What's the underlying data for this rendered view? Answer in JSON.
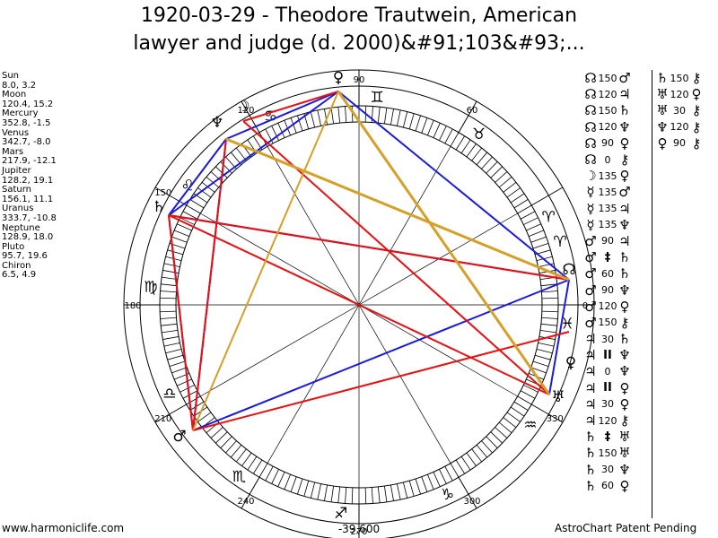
{
  "title_line1": "1920-03-29 - Theodore Trautwein, American",
  "title_line2": "lawyer and judge (d. 2000)&#91;103&#93;...",
  "planets": [
    {
      "name": "Sun",
      "coords": "8.0, 3.2"
    },
    {
      "name": "Moon",
      "coords": "120.4, 15.2"
    },
    {
      "name": "Mercury",
      "coords": "352.8, -1.5"
    },
    {
      "name": "Venus",
      "coords": "342.7, -8.0"
    },
    {
      "name": "Mars",
      "coords": "217.9, -12.1"
    },
    {
      "name": "Jupiter",
      "coords": "128.2, 19.1"
    },
    {
      "name": "Saturn",
      "coords": "156.1, 11.1"
    },
    {
      "name": "Uranus",
      "coords": "333.7, -10.8"
    },
    {
      "name": "Neptune",
      "coords": "128.9, 18.0"
    },
    {
      "name": "Pluto",
      "coords": "95.7, 19.6"
    },
    {
      "name": "Chiron",
      "coords": "6.5, 4.9"
    }
  ],
  "degree_labels": [
    "90",
    "60",
    "120",
    "150",
    "180",
    "210",
    "240",
    "270",
    "300",
    "330",
    "0"
  ],
  "center_label": "-39,600",
  "footer_left": "www.harmoniclife.com",
  "footer_right": "AstroChart Patent Pending",
  "aspects_col1": [
    [
      "☊",
      "150",
      "♂"
    ],
    [
      "☊",
      "120",
      "♃"
    ],
    [
      "☊",
      "150",
      "♄"
    ],
    [
      "☊",
      "120",
      "♆"
    ],
    [
      "☊",
      "90",
      "♀"
    ],
    [
      "☊",
      "0",
      "⚷"
    ],
    [
      "☽",
      "135",
      "♀"
    ],
    [
      "☿",
      "135",
      "♂"
    ],
    [
      "☿",
      "135",
      "♃"
    ],
    [
      "☿",
      "135",
      "♆"
    ],
    [
      "♂",
      "90",
      "♃"
    ],
    [
      "♂",
      "‡",
      "♄"
    ],
    [
      "♂",
      "60",
      "♄"
    ],
    [
      "♂",
      "90",
      "♆"
    ],
    [
      "♂",
      "120",
      "♀"
    ],
    [
      "♂",
      "150",
      "⚷"
    ],
    [
      "♃",
      "30",
      "♄"
    ],
    [
      "♃",
      "II",
      "♆"
    ],
    [
      "♃",
      "0",
      "♆"
    ],
    [
      "♃",
      "II",
      "♀"
    ],
    [
      "♃",
      "30",
      "♀"
    ],
    [
      "♃",
      "120",
      "⚷"
    ],
    [
      "♄",
      "‡",
      "♅"
    ],
    [
      "♄",
      "150",
      "♅"
    ],
    [
      "♄",
      "30",
      "♆"
    ],
    [
      "♄",
      "60",
      "♀"
    ]
  ],
  "aspects_col2": [
    [
      "♄",
      "150",
      "⚷"
    ],
    [
      "♅",
      "120",
      "♀"
    ],
    [
      "♅",
      "30",
      "⚷"
    ],
    [
      "♆",
      "120",
      "⚷"
    ],
    [
      "♀",
      "90",
      "⚷"
    ]
  ],
  "colors": {
    "blue": "#1a1adc",
    "red": "#e81010",
    "gold": "#d4a028"
  }
}
